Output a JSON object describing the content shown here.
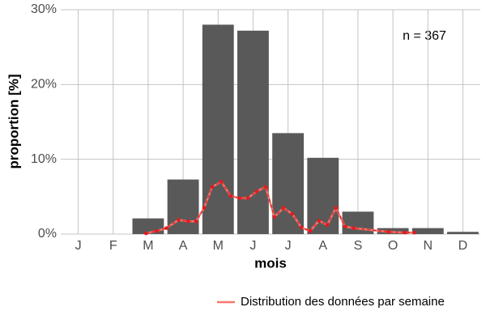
{
  "chart_data": {
    "type": "bar",
    "x_label": "mois",
    "y_label": "proportion [%]",
    "annotation": "n = 367",
    "categories": [
      "J",
      "F",
      "M",
      "A",
      "M",
      "J",
      "J",
      "A",
      "S",
      "O",
      "N",
      "D"
    ],
    "values": [
      0,
      0,
      2.1,
      7.3,
      28,
      27.2,
      13.5,
      10.2,
      3.0,
      0.8,
      0.8,
      0.3
    ],
    "color": "#595959",
    "xlim": [
      0.5,
      12.5
    ],
    "ylim": [
      0,
      30
    ],
    "yticks": [
      {
        "value": 0,
        "label": "0%"
      },
      {
        "value": 10,
        "label": "10%"
      },
      {
        "value": 20,
        "label": "20%"
      },
      {
        "value": 30,
        "label": "30%"
      }
    ],
    "grid": true,
    "legend": "bottom-right",
    "series": [
      {
        "name": "Distribution des données par semaine",
        "type": "line",
        "color": "#f8766d",
        "point_color": "#e41a1c",
        "x": [
          2.94,
          3.24,
          3.52,
          3.87,
          4.14,
          4.37,
          4.6,
          4.83,
          5.09,
          5.36,
          5.62,
          5.85,
          6.1,
          6.36,
          6.61,
          6.87,
          7.12,
          7.38,
          7.63,
          7.89,
          8.12,
          8.37,
          8.63,
          8.88,
          9.87,
          10.34,
          10.61
        ],
        "values": [
          0.1,
          0.4,
          0.8,
          1.9,
          1.7,
          1.7,
          3.5,
          6.3,
          7.0,
          5.1,
          4.8,
          4.8,
          5.7,
          6.3,
          2.3,
          3.5,
          2.7,
          0.9,
          0.4,
          1.8,
          1.2,
          3.5,
          1.0,
          0.8,
          0.3,
          0.2,
          0.2
        ]
      }
    ]
  }
}
